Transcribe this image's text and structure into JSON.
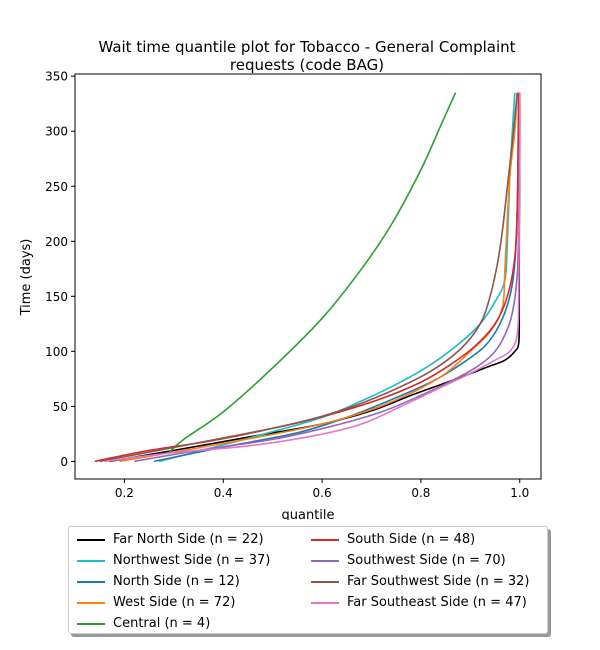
{
  "chart_data": {
    "type": "line",
    "title": "Wait time quantile plot for Tobacco - General Complaint requests (code BAG)",
    "title_lines": [
      "Wait time quantile plot for Tobacco - General Complaint",
      "requests (code BAG)"
    ],
    "xlabel": "quantile",
    "ylabel": "Time (days)",
    "xlim": [
      0.1,
      1.043
    ],
    "ylim": [
      -16,
      352
    ],
    "xticks": [
      0.2,
      0.4,
      0.6,
      0.8,
      1.0
    ],
    "xtick_labels": [
      "0.2",
      "0.4",
      "0.6",
      "0.8",
      "1.0"
    ],
    "yticks": [
      0,
      50,
      100,
      150,
      200,
      250,
      300,
      350
    ],
    "ytick_labels": [
      "0",
      "50",
      "100",
      "150",
      "200",
      "250",
      "300",
      "350"
    ],
    "grid": false,
    "legend_position": "bottom",
    "series": [
      {
        "name": "Far North Side (n = 22)",
        "color": "#000000",
        "points": [
          [
            0.17,
            0
          ],
          [
            0.3,
            10
          ],
          [
            0.45,
            22
          ],
          [
            0.6,
            34
          ],
          [
            0.7,
            46
          ],
          [
            0.78,
            60
          ],
          [
            0.86,
            73
          ],
          [
            0.93,
            85
          ],
          [
            0.97,
            92
          ],
          [
            0.99,
            100
          ],
          [
            0.998,
            108
          ],
          [
            0.999,
            140
          ],
          [
            0.999,
            200
          ],
          [
            1.0,
            280
          ],
          [
            1.0,
            335
          ]
        ]
      },
      {
        "name": "Northwest Side (n = 37)",
        "color": "#17becf",
        "points": [
          [
            0.27,
            0
          ],
          [
            0.4,
            15
          ],
          [
            0.5,
            27
          ],
          [
            0.6,
            40
          ],
          [
            0.68,
            55
          ],
          [
            0.75,
            70
          ],
          [
            0.82,
            88
          ],
          [
            0.88,
            108
          ],
          [
            0.92,
            125
          ],
          [
            0.95,
            145
          ],
          [
            0.97,
            165
          ],
          [
            0.975,
            200
          ],
          [
            0.98,
            260
          ],
          [
            0.985,
            300
          ],
          [
            0.99,
            335
          ]
        ]
      },
      {
        "name": "North Side (n = 12)",
        "color": "#1f77b4",
        "points": [
          [
            0.26,
            0
          ],
          [
            0.4,
            13
          ],
          [
            0.55,
            26
          ],
          [
            0.65,
            40
          ],
          [
            0.74,
            56
          ],
          [
            0.82,
            72
          ],
          [
            0.88,
            88
          ],
          [
            0.93,
            105
          ],
          [
            0.96,
            125
          ],
          [
            0.98,
            150
          ],
          [
            0.99,
            180
          ],
          [
            0.995,
            230
          ],
          [
            0.997,
            300
          ],
          [
            0.998,
            335
          ]
        ]
      },
      {
        "name": "West Side (n = 72)",
        "color": "#ff7f0e",
        "points": [
          [
            0.19,
            0
          ],
          [
            0.32,
            10
          ],
          [
            0.47,
            22
          ],
          [
            0.6,
            34
          ],
          [
            0.7,
            47
          ],
          [
            0.78,
            62
          ],
          [
            0.85,
            80
          ],
          [
            0.9,
            100
          ],
          [
            0.94,
            118
          ],
          [
            0.965,
            140
          ],
          [
            0.97,
            175
          ],
          [
            0.975,
            220
          ],
          [
            0.98,
            260
          ],
          [
            0.99,
            300
          ],
          [
            0.995,
            335
          ]
        ]
      },
      {
        "name": "Central (n = 4)",
        "color": "#2ca02c",
        "points": [
          [
            0.29,
            8
          ],
          [
            0.32,
            20
          ],
          [
            0.4,
            45
          ],
          [
            0.5,
            85
          ],
          [
            0.6,
            130
          ],
          [
            0.68,
            175
          ],
          [
            0.74,
            215
          ],
          [
            0.8,
            265
          ],
          [
            0.84,
            305
          ],
          [
            0.87,
            335
          ]
        ]
      },
      {
        "name": "South Side (n = 48)",
        "color": "#d62728",
        "points": [
          [
            0.14,
            0
          ],
          [
            0.25,
            10
          ],
          [
            0.38,
            19
          ],
          [
            0.5,
            30
          ],
          [
            0.62,
            43
          ],
          [
            0.72,
            57
          ],
          [
            0.8,
            72
          ],
          [
            0.86,
            88
          ],
          [
            0.91,
            105
          ],
          [
            0.95,
            125
          ],
          [
            0.975,
            150
          ],
          [
            0.99,
            185
          ],
          [
            0.995,
            230
          ],
          [
            0.997,
            290
          ],
          [
            0.998,
            335
          ]
        ]
      },
      {
        "name": "Southwest Side (n = 70)",
        "color": "#9467bd",
        "points": [
          [
            0.22,
            0
          ],
          [
            0.35,
            10
          ],
          [
            0.5,
            20
          ],
          [
            0.62,
            32
          ],
          [
            0.72,
            45
          ],
          [
            0.8,
            60
          ],
          [
            0.87,
            75
          ],
          [
            0.92,
            88
          ],
          [
            0.95,
            100
          ],
          [
            0.97,
            115
          ],
          [
            0.985,
            135
          ],
          [
            0.995,
            170
          ],
          [
            0.998,
            220
          ],
          [
            1.0,
            290
          ],
          [
            1.0,
            335
          ]
        ]
      },
      {
        "name": "Far Southwest Side (n = 32)",
        "color": "#8c564b",
        "points": [
          [
            0.15,
            0
          ],
          [
            0.28,
            11
          ],
          [
            0.42,
            23
          ],
          [
            0.55,
            35
          ],
          [
            0.65,
            48
          ],
          [
            0.74,
            64
          ],
          [
            0.82,
            82
          ],
          [
            0.88,
            102
          ],
          [
            0.92,
            125
          ],
          [
            0.94,
            150
          ],
          [
            0.955,
            180
          ],
          [
            0.965,
            210
          ],
          [
            0.975,
            250
          ],
          [
            0.985,
            290
          ],
          [
            0.995,
            335
          ]
        ]
      },
      {
        "name": "Far Southeast Side (n = 47)",
        "color": "#e377c2",
        "points": [
          [
            0.16,
            0
          ],
          [
            0.3,
            8
          ],
          [
            0.45,
            14
          ],
          [
            0.58,
            23
          ],
          [
            0.68,
            34
          ],
          [
            0.76,
            50
          ],
          [
            0.83,
            65
          ],
          [
            0.9,
            80
          ],
          [
            0.95,
            92
          ],
          [
            0.98,
            100
          ],
          [
            0.995,
            115
          ],
          [
            0.998,
            150
          ],
          [
            0.999,
            220
          ],
          [
            1.0,
            300
          ],
          [
            1.0,
            335
          ]
        ]
      }
    ]
  }
}
